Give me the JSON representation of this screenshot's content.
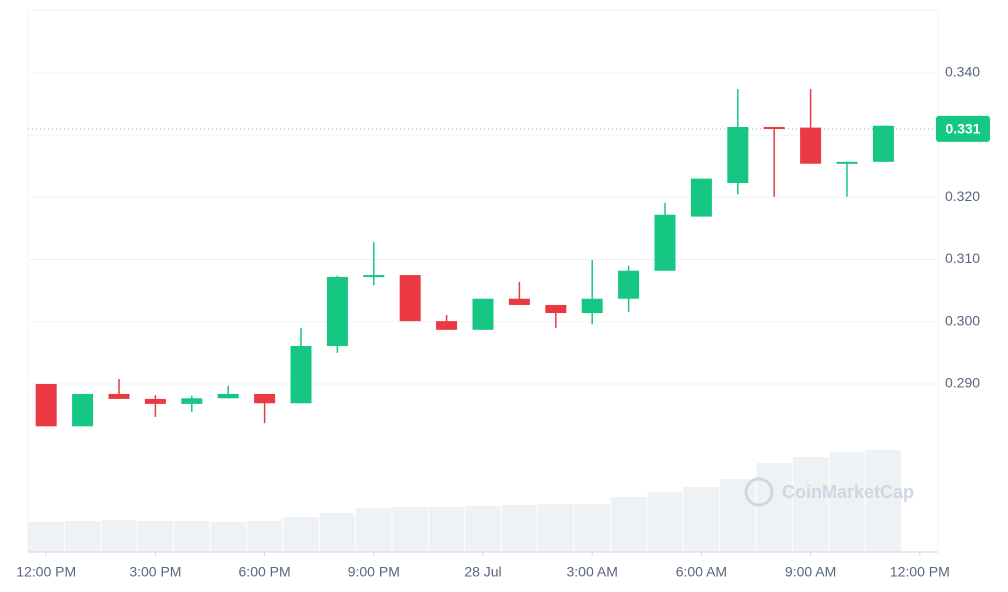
{
  "chart_data": {
    "type": "candlestick",
    "x": [
      0,
      1,
      2,
      3,
      4,
      5,
      6,
      7,
      8,
      9,
      10,
      11,
      12,
      13,
      14,
      15,
      16,
      17,
      18,
      19,
      20,
      21,
      22,
      23
    ],
    "open": [
      0.29,
      0.2832,
      0.2884,
      0.2876,
      0.2868,
      0.2877,
      0.2884,
      0.2869,
      0.2961,
      0.3072,
      0.3075,
      0.3001,
      0.2987,
      0.3037,
      0.3027,
      0.3014,
      0.3037,
      0.3082,
      0.3169,
      0.3223,
      0.3313,
      0.3312,
      0.3254,
      0.3257
    ],
    "high": [
      0.29,
      0.2884,
      0.2908,
      0.2882,
      0.2881,
      0.2897,
      0.2884,
      0.299,
      0.3074,
      0.3128,
      0.3075,
      0.3011,
      0.3037,
      0.3064,
      0.3027,
      0.3099,
      0.309,
      0.3191,
      0.323,
      0.3374,
      0.3313,
      0.3374,
      0.3257,
      0.3315
    ],
    "low": [
      0.2832,
      0.2832,
      0.2876,
      0.2847,
      0.2855,
      0.2877,
      0.2837,
      0.2869,
      0.295,
      0.3059,
      0.3001,
      0.2987,
      0.2987,
      0.3027,
      0.299,
      0.2996,
      0.3016,
      0.3082,
      0.3169,
      0.3205,
      0.3201,
      0.3254,
      0.3201,
      0.3257
    ],
    "close": [
      0.2832,
      0.2884,
      0.2876,
      0.2868,
      0.2877,
      0.2884,
      0.2869,
      0.2961,
      0.3072,
      0.3075,
      0.3001,
      0.2987,
      0.3037,
      0.3027,
      0.3014,
      0.3037,
      0.3082,
      0.3172,
      0.323,
      0.3313,
      0.331,
      0.3254,
      0.3257,
      0.3315
    ],
    "volume": [
      30,
      31,
      32,
      31,
      31,
      30,
      31,
      35,
      39,
      44,
      45,
      45,
      46,
      47,
      48,
      48,
      55,
      60,
      65,
      73,
      89,
      95,
      100,
      102
    ],
    "volume_lim": [
      0,
      542
    ],
    "up_color": "#16c784",
    "down_color": "#ea3943",
    "volume_color": "#eff2f5",
    "xlim": [
      -0.5,
      24.5
    ],
    "xticks": [
      {
        "value": 0,
        "label": "12:00 PM"
      },
      {
        "value": 3,
        "label": "3:00 PM"
      },
      {
        "value": 6,
        "label": "6:00 PM"
      },
      {
        "value": 9,
        "label": "9:00 PM"
      },
      {
        "value": 12,
        "label": "28 Jul"
      },
      {
        "value": 15,
        "label": "3:00 AM"
      },
      {
        "value": 18,
        "label": "6:00 AM"
      },
      {
        "value": 21,
        "label": "9:00 AM"
      },
      {
        "value": 24,
        "label": "12:00 PM"
      }
    ],
    "ylim": [
      0.263,
      0.3501
    ],
    "yticks": [
      {
        "value": 0.29,
        "label": "0.290"
      },
      {
        "value": 0.3,
        "label": "0.300"
      },
      {
        "value": 0.31,
        "label": "0.310"
      },
      {
        "value": 0.32,
        "label": "0.320"
      },
      {
        "value": 0.33,
        "label": "0.330"
      },
      {
        "value": 0.34,
        "label": "0.340"
      }
    ],
    "current_price": {
      "value": 0.331,
      "label": "0.331"
    },
    "grid": true,
    "watermark": "CoinMarketCap"
  }
}
